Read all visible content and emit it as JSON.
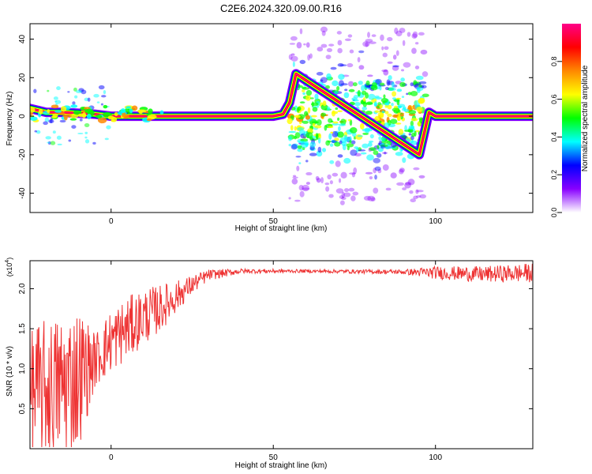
{
  "title": "C2E6.2024.320.09.00.R16",
  "chart_data": [
    {
      "type": "heatmap",
      "xlabel": "Height of straight line (km)",
      "ylabel": "Frequency (Hz)",
      "xlim": [
        -25,
        130
      ],
      "ylim": [
        -50,
        48
      ],
      "xticks": [
        0,
        50,
        100
      ],
      "yticks": [
        -40,
        -20,
        0,
        20,
        40
      ],
      "grid": false,
      "ridge": [
        {
          "x": -25,
          "y": 4
        },
        {
          "x": -20,
          "y": 2
        },
        {
          "x": -15,
          "y": 2
        },
        {
          "x": -10,
          "y": 1.5
        },
        {
          "x": -5,
          "y": 1
        },
        {
          "x": 0,
          "y": 0
        },
        {
          "x": 10,
          "y": 0
        },
        {
          "x": 20,
          "y": 0
        },
        {
          "x": 30,
          "y": 0
        },
        {
          "x": 40,
          "y": 0
        },
        {
          "x": 50,
          "y": 0
        },
        {
          "x": 53,
          "y": 1
        },
        {
          "x": 55,
          "y": 7
        },
        {
          "x": 57,
          "y": 22
        },
        {
          "x": 95,
          "y": -20
        },
        {
          "x": 98,
          "y": 2
        },
        {
          "x": 100,
          "y": 0
        },
        {
          "x": 110,
          "y": 0
        },
        {
          "x": 120,
          "y": 0
        },
        {
          "x": 130,
          "y": 0
        }
      ],
      "scatter_region": {
        "x": [
          55,
          97
        ],
        "y": [
          -45,
          45
        ]
      },
      "colorbar": {
        "label": "Normalized spectral amplitude",
        "range": [
          0,
          1
        ],
        "ticks": [
          "0.0",
          "0.2",
          "0.4",
          "0.6",
          "0.8"
        ],
        "colors": [
          "#ffffff",
          "#8800ff",
          "#0000ff",
          "#00ffff",
          "#00ff00",
          "#ffff00",
          "#ff8800",
          "#ff0000",
          "#ff0088"
        ]
      }
    },
    {
      "type": "line",
      "xlabel": "Height of straight line (km)",
      "ylabel": "SNR (10 * v/v)",
      "y_multiplier": "(x10",
      "y_multiplier_exp": "4",
      "y_multiplier_close": ")",
      "xlim": [
        -25,
        130
      ],
      "ylim": [
        0,
        2.35
      ],
      "xticks": [
        0,
        50,
        100
      ],
      "yticks": [
        "0.5",
        "1.0",
        "1.5",
        "2.0"
      ],
      "grid": false,
      "color": "#ee3333",
      "envelope": [
        {
          "x": -25,
          "mean": 0.7,
          "amp": 0.85
        },
        {
          "x": -15,
          "mean": 0.8,
          "amp": 0.9
        },
        {
          "x": -10,
          "mean": 0.9,
          "amp": 0.9
        },
        {
          "x": -5,
          "mean": 1.1,
          "amp": 0.35
        },
        {
          "x": 0,
          "mean": 1.35,
          "amp": 0.4
        },
        {
          "x": 5,
          "mean": 1.5,
          "amp": 0.4
        },
        {
          "x": 10,
          "mean": 1.65,
          "amp": 0.35
        },
        {
          "x": 15,
          "mean": 1.75,
          "amp": 0.3
        },
        {
          "x": 20,
          "mean": 1.9,
          "amp": 0.2
        },
        {
          "x": 25,
          "mean": 2.05,
          "amp": 0.12
        },
        {
          "x": 30,
          "mean": 2.17,
          "amp": 0.07
        },
        {
          "x": 40,
          "mean": 2.22,
          "amp": 0.03
        },
        {
          "x": 60,
          "mean": 2.22,
          "amp": 0.02
        },
        {
          "x": 90,
          "mean": 2.21,
          "amp": 0.03
        },
        {
          "x": 100,
          "mean": 2.2,
          "amp": 0.08
        },
        {
          "x": 115,
          "mean": 2.18,
          "amp": 0.1
        },
        {
          "x": 130,
          "mean": 2.2,
          "amp": 0.12
        }
      ]
    }
  ]
}
